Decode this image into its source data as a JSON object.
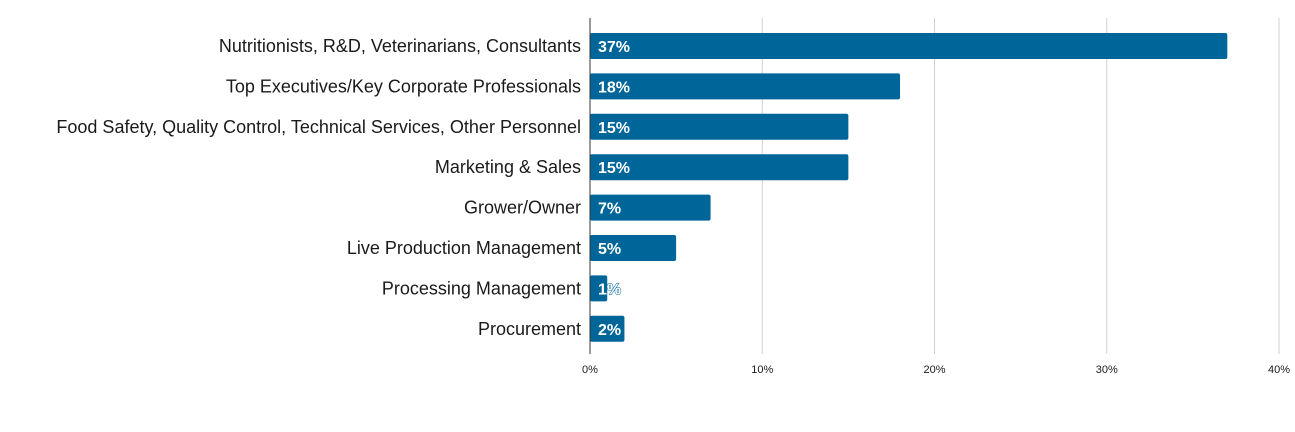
{
  "chart_data": {
    "type": "bar",
    "orientation": "horizontal",
    "categories": [
      "Nutritionists, R&D, Veterinarians, Consultants",
      "Top Executives/Key Corporate Professionals",
      "Food Safety, Quality Control, Technical Services, Other Personnel",
      "Marketing & Sales",
      "Grower/Owner",
      "Live Production Management",
      "Processing Management",
      "Procurement"
    ],
    "values": [
      37,
      18,
      15,
      15,
      7,
      5,
      1,
      2
    ],
    "data_labels": [
      "37%",
      "18%",
      "15%",
      "15%",
      "7%",
      "5%",
      "1%",
      "2%"
    ],
    "title": "",
    "xlabel": "",
    "ylabel": "",
    "xlim": [
      0,
      40
    ],
    "x_ticks": [
      0,
      10,
      20,
      30,
      40
    ],
    "x_tick_labels": [
      "0%",
      "10%",
      "20%",
      "30%",
      "40%"
    ],
    "grid": "vertical",
    "legend": "none",
    "bar_color": "#006699",
    "label_color": "#ffffff"
  }
}
